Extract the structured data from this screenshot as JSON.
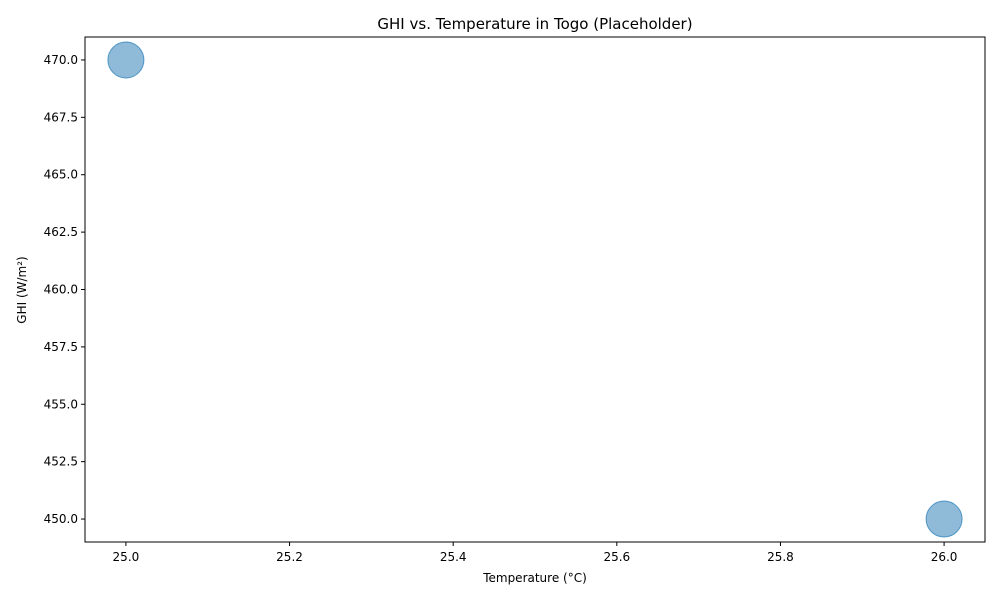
{
  "chart_data": {
    "type": "scatter",
    "title": "GHI vs. Temperature in Togo (Placeholder)",
    "xlabel": "Temperature (°C)",
    "ylabel": "GHI (W/m²)",
    "xlim": [
      24.95,
      26.05
    ],
    "ylim": [
      449.0,
      471.0
    ],
    "x_ticks": [
      25.0,
      25.2,
      25.4,
      25.6,
      25.8,
      26.0
    ],
    "x_tick_labels": [
      "25.0",
      "25.2",
      "25.4",
      "25.6",
      "25.8",
      "26.0"
    ],
    "y_ticks": [
      450.0,
      452.5,
      455.0,
      457.5,
      460.0,
      462.5,
      465.0,
      467.5,
      470.0
    ],
    "y_tick_labels": [
      "450.0",
      "452.5",
      "455.0",
      "457.5",
      "460.0",
      "462.5",
      "465.0",
      "467.5",
      "470.0"
    ],
    "grid": false,
    "points": [
      {
        "x": 25.0,
        "y": 470.0
      },
      {
        "x": 26.0,
        "y": 450.0
      }
    ],
    "marker_color": "#1f77b4",
    "marker_alpha": 0.5
  }
}
